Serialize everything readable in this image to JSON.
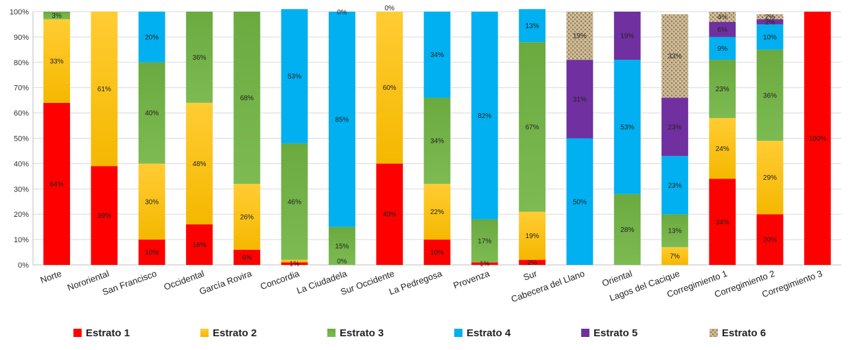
{
  "chart_data": {
    "type": "bar",
    "stacked": true,
    "ylim": [
      0,
      100
    ],
    "y_tick_labels": [
      "0%",
      "10%",
      "20%",
      "30%",
      "40%",
      "50%",
      "60%",
      "70%",
      "80%",
      "90%",
      "100%"
    ],
    "grid": true,
    "legend_position": "bottom",
    "categories": [
      "Norte",
      "Nororiental",
      "San Francisco",
      "Occidental",
      "García Rovira",
      "Concordia",
      "La Ciudadela",
      "Sur Occidente",
      "La Pedregosa",
      "Provenza",
      "Sur",
      "Cabecera del Llano",
      "Oriental",
      "Lagos del Cacique",
      "Corregimiento 1",
      "Corregimiento 2",
      "Corregimiento 3"
    ],
    "series": [
      {
        "name": "Estrato 1",
        "color": "#ff0000",
        "values": [
          64,
          39,
          10,
          16,
          6,
          1,
          0,
          40,
          10,
          1,
          2,
          0,
          0,
          0,
          34,
          20,
          100
        ],
        "labels": [
          "64%",
          "39%",
          "10%",
          "16%",
          "6%",
          "1%",
          "",
          "40%",
          "10%",
          "1%",
          "2%",
          "",
          "",
          "",
          "34%",
          "20%",
          "100%"
        ]
      },
      {
        "name": "Estrato 2",
        "color": "#ffc000",
        "values": [
          33,
          61,
          30,
          48,
          26,
          1,
          0,
          60,
          22,
          0,
          19,
          0,
          0,
          7,
          24,
          29,
          0
        ],
        "labels": [
          "33%",
          "61%",
          "30%",
          "48%",
          "26%",
          "",
          "",
          "60%",
          "22%",
          "",
          "19%",
          "",
          "",
          "7%",
          "24%",
          "29%",
          ""
        ]
      },
      {
        "name": "Estrato 3",
        "color": "#70ad47",
        "values": [
          3,
          0,
          40,
          36,
          68,
          46,
          15,
          0,
          34,
          17,
          67,
          0,
          28,
          13,
          23,
          36,
          0
        ],
        "labels": [
          "3%",
          "",
          "40%",
          "36%",
          "68%",
          "46%",
          "15%",
          "",
          "34%",
          "17%",
          "67%",
          "",
          "28%",
          "13%",
          "23%",
          "36%",
          ""
        ]
      },
      {
        "name": "Estrato 4",
        "color": "#00b0f0",
        "values": [
          0,
          0,
          20,
          0,
          0,
          53,
          85,
          0,
          34,
          82,
          13,
          50,
          53,
          23,
          9,
          10,
          0
        ],
        "labels": [
          "",
          "",
          "20%",
          "",
          "",
          "53%",
          "85%",
          "0%",
          "34%",
          "82%",
          "13%",
          "50%",
          "53%",
          "23%",
          "9%",
          "10%",
          ""
        ]
      },
      {
        "name": "Estrato 5",
        "color": "#7030a0",
        "values": [
          0,
          0,
          0,
          0,
          0,
          0,
          0,
          0,
          0,
          0,
          0,
          31,
          19,
          23,
          6,
          2,
          0
        ],
        "labels": [
          "",
          "",
          "",
          "",
          "",
          "",
          "",
          "",
          "",
          "",
          "",
          "31%",
          "19%",
          "23%",
          "6%",
          "2%",
          ""
        ]
      },
      {
        "name": "Estrato 6",
        "color": "#c8b48c",
        "values": [
          0,
          0,
          0,
          0,
          0,
          0,
          0,
          0,
          0,
          0,
          0,
          19,
          0,
          33,
          4,
          2,
          0
        ],
        "labels": [
          "",
          "",
          "",
          "",
          "",
          "",
          "",
          "",
          "",
          "",
          "",
          "19%",
          "",
          "33%",
          "4%",
          "2%",
          ""
        ]
      }
    ],
    "extra_labels": [
      {
        "category": "La Ciudadela",
        "series": "Estrato 3",
        "at": 0,
        "text": "0%"
      },
      {
        "category": "La Ciudadela",
        "series": "Estrato 4",
        "at": 100,
        "text": "0%"
      }
    ]
  }
}
